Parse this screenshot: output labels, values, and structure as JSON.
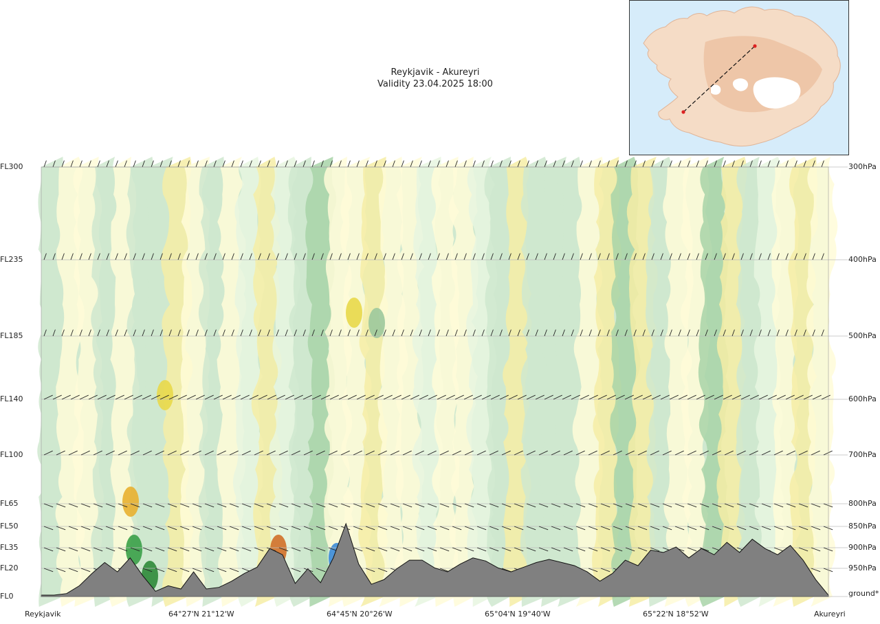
{
  "title": "Reykjavik - Akureyri",
  "subtitle": "Validity 23.04.2025 18:00",
  "chart_data": {
    "type": "cross-section",
    "title": "Reykjavik - Akureyri",
    "subtitle": "Validity 23.04.2025 18:00",
    "flight_levels": [
      "FL300",
      "FL235",
      "FL185",
      "FL140",
      "FL100",
      "FL65",
      "FL50",
      "FL35",
      "FL20",
      "FL0"
    ],
    "pressure_levels": [
      "300hPa",
      "400hPa",
      "500hPa",
      "600hPa",
      "700hPa",
      "800hPa",
      "850hPa",
      "900hPa",
      "950hPa",
      "ground*"
    ],
    "x_labels": [
      "Reykjavik",
      "64°27'N 21°12'W",
      "64°45'N 20°26'W",
      "65°04'N 19°40'W",
      "65°22'N 18°52'W",
      "Akureyri"
    ],
    "route": {
      "start": "Reykjavik",
      "end": "Akureyri"
    },
    "terrain_profile_relative": [
      0.0,
      0.0,
      0.02,
      0.12,
      0.28,
      0.42,
      0.3,
      0.48,
      0.25,
      0.05,
      0.12,
      0.08,
      0.3,
      0.08,
      0.1,
      0.18,
      0.28,
      0.36,
      0.6,
      0.52,
      0.15,
      0.34,
      0.16,
      0.48,
      0.92,
      0.4,
      0.14,
      0.2,
      0.34,
      0.45,
      0.45,
      0.35,
      0.3,
      0.4,
      0.48,
      0.44,
      0.35,
      0.3,
      0.36,
      0.42,
      0.46,
      0.42,
      0.38,
      0.3,
      0.18,
      0.28,
      0.45,
      0.38,
      0.58,
      0.55,
      0.62,
      0.48,
      0.6,
      0.52,
      0.68,
      0.55,
      0.72,
      0.6,
      0.52,
      0.64,
      0.45,
      0.2,
      0.0
    ],
    "wind_barb_rows": 9
  }
}
